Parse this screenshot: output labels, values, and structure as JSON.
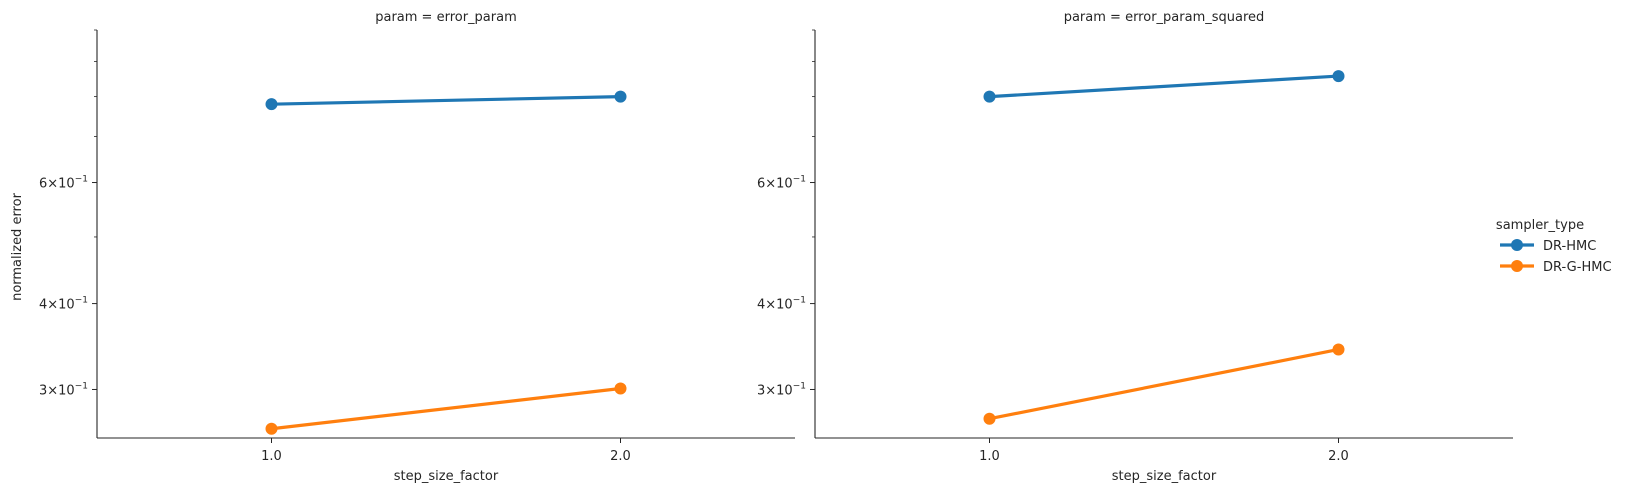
{
  "chart_data": [
    {
      "type": "line",
      "title": "param = error_param",
      "xlabel": "step_size_factor",
      "ylabel": "normalized error",
      "categories": [
        "1.0",
        "2.0"
      ],
      "y_scale": "log",
      "ylim": [
        0.255,
        1.0
      ],
      "grid": false,
      "y_tick_labels": [
        {
          "value": 0.6,
          "base": "6",
          "exp": "−1"
        },
        {
          "value": 0.4,
          "base": "4",
          "exp": "−1"
        },
        {
          "value": 0.3,
          "base": "3",
          "exp": "−1"
        }
      ],
      "series": [
        {
          "name": "DR-HMC",
          "color": "#1f77b4",
          "values": [
            0.78,
            0.8
          ]
        },
        {
          "name": "DR-G-HMC",
          "color": "#ff7f0e",
          "values": [
            0.263,
            0.301
          ]
        }
      ]
    },
    {
      "type": "line",
      "title": "param = error_param_squared",
      "xlabel": "step_size_factor",
      "ylabel": "",
      "categories": [
        "1.0",
        "2.0"
      ],
      "y_scale": "log",
      "ylim": [
        0.255,
        1.0
      ],
      "grid": false,
      "y_tick_labels": [
        {
          "value": 0.6,
          "base": "6",
          "exp": "−1"
        },
        {
          "value": 0.4,
          "base": "4",
          "exp": "−1"
        },
        {
          "value": 0.3,
          "base": "3",
          "exp": "−1"
        }
      ],
      "series": [
        {
          "name": "DR-HMC",
          "color": "#1f77b4",
          "values": [
            0.8,
            0.857
          ]
        },
        {
          "name": "DR-G-HMC",
          "color": "#ff7f0e",
          "values": [
            0.272,
            0.343
          ]
        }
      ]
    }
  ],
  "legend": {
    "title": "sampler_type",
    "placement": "right",
    "items": [
      {
        "label": "DR-HMC",
        "color": "#1f77b4"
      },
      {
        "label": "DR-G-HMC",
        "color": "#ff7f0e"
      }
    ]
  }
}
